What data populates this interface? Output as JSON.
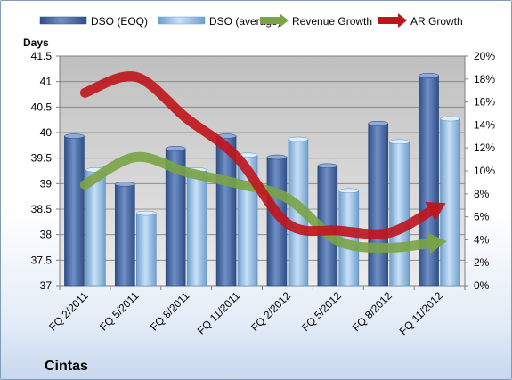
{
  "chart_data": {
    "type": "bar",
    "company": "Cintas",
    "categories": [
      "FQ 2/2011",
      "FQ 5/2011",
      "FQ 8/2011",
      "FQ 11/2011",
      "FQ 2/2012",
      "FQ 5/2012",
      "FQ 8/2012",
      "FQ 11/2012"
    ],
    "ylabel": "Days",
    "ylim": [
      37,
      41.5
    ],
    "y_ticks": [
      "41.5",
      "41",
      "40.5",
      "40",
      "39.5",
      "39",
      "38.5",
      "38",
      "37.5",
      "37"
    ],
    "y2lim": [
      0,
      20
    ],
    "y2_ticks": [
      "20%",
      "18%",
      "16%",
      "14%",
      "12%",
      "10%",
      "8%",
      "6%",
      "4%",
      "2%",
      "0%"
    ],
    "legend_position": "top",
    "grid": true,
    "series": [
      {
        "name": "DSO (EOQ)",
        "type": "bar",
        "axis": "left",
        "color": "#4f6fa8",
        "values": [
          39.93,
          38.99,
          39.69,
          39.93,
          39.52,
          39.35,
          40.18,
          41.12
        ]
      },
      {
        "name": "DSO (average)",
        "type": "bar",
        "axis": "left",
        "color": "#9fc4e8",
        "values": [
          39.27,
          38.42,
          39.27,
          39.56,
          39.87,
          38.86,
          39.82,
          40.27
        ]
      },
      {
        "name": "Revenue Growth",
        "type": "line",
        "axis": "right",
        "color": "#7aa346",
        "values": [
          8.8,
          11.2,
          9.9,
          8.9,
          7.6,
          3.9,
          3.3,
          3.8
        ]
      },
      {
        "name": "AR Growth",
        "type": "line",
        "axis": "right",
        "color": "#c0141c",
        "values": [
          16.8,
          18.2,
          14.6,
          11.2,
          5.4,
          4.8,
          4.6,
          6.9
        ]
      }
    ]
  }
}
